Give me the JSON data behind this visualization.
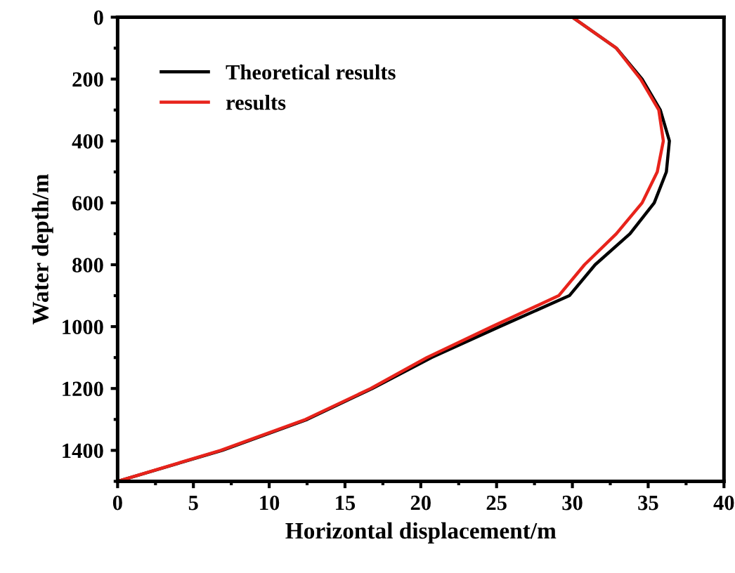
{
  "chart_data": {
    "type": "line",
    "xlabel": "Horizontal displacement/m",
    "ylabel": "Water depth/m",
    "xlim": [
      0,
      40
    ],
    "xticks": [
      0,
      5,
      10,
      15,
      20,
      25,
      30,
      35,
      40
    ],
    "ylim": [
      1500,
      0
    ],
    "yticks": [
      0,
      200,
      400,
      600,
      800,
      1000,
      1200,
      1400
    ],
    "grid": false,
    "legend": "top left",
    "marker": "none",
    "line_style": "solid",
    "series": [
      {
        "name": "Theoretical results",
        "color": "#000000",
        "x": [
          30,
          32.9,
          34.6,
          35.8,
          36.4,
          36.2,
          35.4,
          33.8,
          31.5,
          29.8,
          25.2,
          20.7,
          16.8,
          12.5,
          6.9,
          0
        ],
        "values": [
          0,
          100,
          200,
          300,
          400,
          500,
          600,
          700,
          800,
          900,
          1000,
          1100,
          1200,
          1300,
          1400,
          1500
        ]
      },
      {
        "name": "results",
        "color": "#e8231b",
        "x": [
          30,
          32.9,
          34.5,
          35.7,
          36.0,
          35.6,
          34.6,
          32.9,
          30.8,
          29.1,
          24.7,
          20.4,
          16.7,
          12.4,
          6.8,
          0
        ],
        "values": [
          0,
          100,
          200,
          300,
          400,
          500,
          600,
          700,
          800,
          900,
          1000,
          1100,
          1200,
          1300,
          1400,
          1500
        ]
      }
    ]
  }
}
